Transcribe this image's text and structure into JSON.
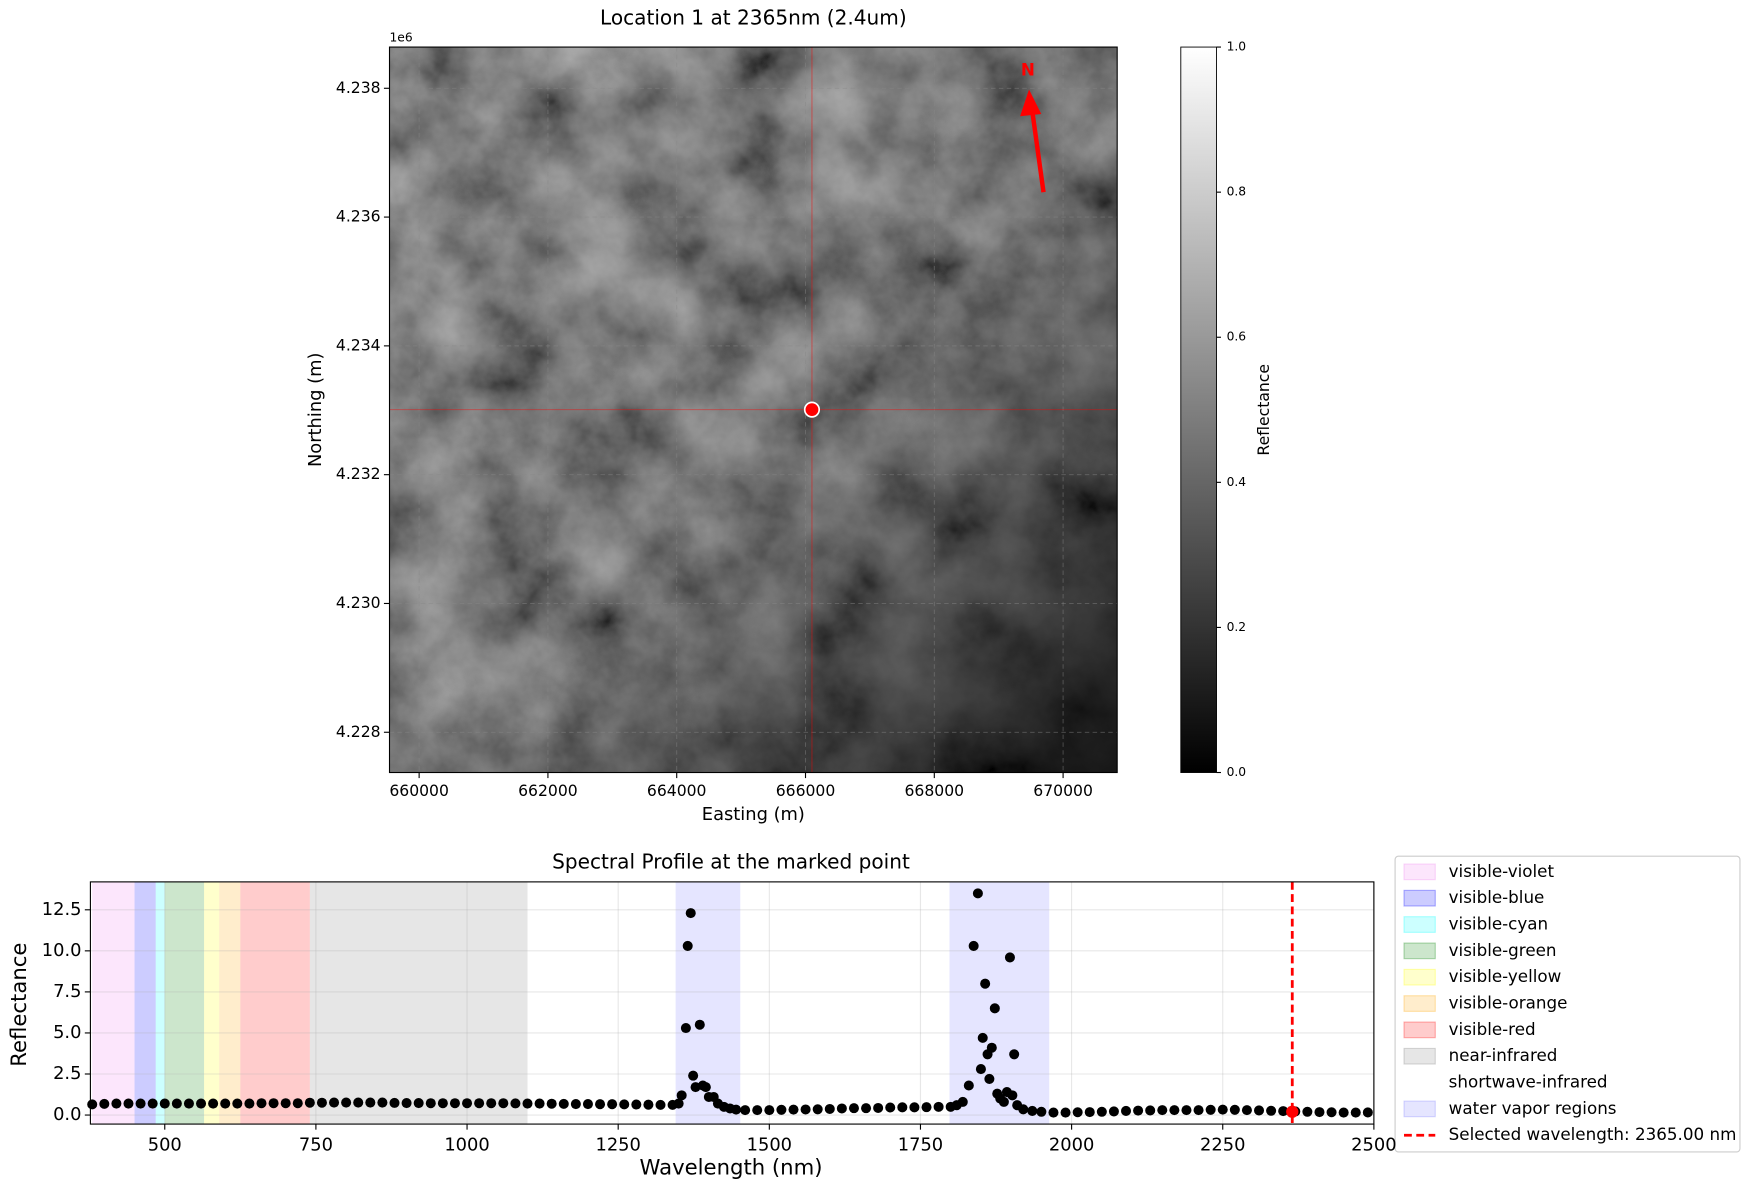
{
  "chart_data": [
    {
      "type": "image",
      "title": "Location 1 at 2365nm (2.4um)",
      "xlabel": "Easting (m)",
      "ylabel": "Northing (m)",
      "offset_label": "1e6",
      "xlim": [
        659540,
        670840
      ],
      "ylim": [
        4227375,
        4238640
      ],
      "xticks": [
        660000,
        662000,
        664000,
        666000,
        668000,
        670000
      ],
      "yticks": [
        {
          "value": 4228000,
          "label": "4.228"
        },
        {
          "value": 4230000,
          "label": "4.230"
        },
        {
          "value": 4232000,
          "label": "4.232"
        },
        {
          "value": 4234000,
          "label": "4.234"
        },
        {
          "value": 4236000,
          "label": "4.236"
        },
        {
          "value": 4238000,
          "label": "4.238"
        }
      ],
      "grid": true,
      "marker": {
        "x": 666100,
        "y": 4233010,
        "color": "red"
      },
      "north_label": "N",
      "colorbar": {
        "label": "Reflectance",
        "lim": [
          0,
          1
        ],
        "ticks": [
          {
            "value": 0,
            "label": "0.0"
          },
          0.2,
          0.4,
          0.6,
          0.8,
          {
            "value": 1,
            "label": "1.0"
          }
        ]
      }
    },
    {
      "type": "scatter",
      "title": "Spectral Profile at the marked point",
      "xlabel": "Wavelength (nm)",
      "ylabel": "Reflectance",
      "xlim": [
        377,
        2500
      ],
      "ylim": [
        -0.55,
        14.2
      ],
      "xticks": [
        500,
        750,
        1000,
        1250,
        1500,
        1750,
        2000,
        2250,
        2500
      ],
      "yticks": [
        {
          "value": 0,
          "label": "0.0"
        },
        2.5,
        {
          "value": 5,
          "label": "5.0"
        },
        7.5,
        {
          "value": 10,
          "label": "10.0"
        },
        12.5
      ],
      "grid": true,
      "color": "#000000",
      "regions": [
        {
          "name": "visible-violet",
          "color": "#ee82ee",
          "alpha": 0.2,
          "ranges": [
            [
              380,
              450
            ]
          ]
        },
        {
          "name": "visible-blue",
          "color": "#0000ff",
          "alpha": 0.2,
          "ranges": [
            [
              450,
              485
            ]
          ]
        },
        {
          "name": "visible-cyan",
          "color": "#00ffff",
          "alpha": 0.2,
          "ranges": [
            [
              485,
              500
            ]
          ]
        },
        {
          "name": "visible-green",
          "color": "#008000",
          "alpha": 0.2,
          "ranges": [
            [
              500,
              565
            ]
          ]
        },
        {
          "name": "visible-yellow",
          "color": "#ffff00",
          "alpha": 0.2,
          "ranges": [
            [
              565,
              590
            ]
          ]
        },
        {
          "name": "visible-orange",
          "color": "#ffa500",
          "alpha": 0.2,
          "ranges": [
            [
              590,
              625
            ]
          ]
        },
        {
          "name": "visible-red",
          "color": "#ff0000",
          "alpha": 0.2,
          "ranges": [
            [
              625,
              740
            ]
          ]
        },
        {
          "name": "near-infrared",
          "color": "#808080",
          "alpha": 0.2,
          "ranges": [
            [
              740,
              1100
            ]
          ]
        },
        {
          "name": "shortwave-infrared",
          "color": "#ffffff",
          "alpha": 0.2,
          "ranges": [
            [
              1100,
              2500
            ]
          ]
        },
        {
          "name": "water vapor regions",
          "color": "#0000ff",
          "alpha": 0.1,
          "ranges": [
            [
              1345,
              1452
            ],
            [
              1798,
              1963
            ]
          ]
        }
      ],
      "selected": {
        "x": 2365,
        "value": 0.2,
        "color": "#ff0000",
        "label": "Selected wavelength: 2365.00 nm"
      },
      "x": [
        380,
        400,
        420,
        440,
        460,
        480,
        500,
        520,
        540,
        560,
        580,
        600,
        620,
        640,
        660,
        680,
        700,
        720,
        740,
        760,
        780,
        800,
        820,
        840,
        860,
        880,
        900,
        920,
        940,
        960,
        980,
        1000,
        1020,
        1040,
        1060,
        1080,
        1100,
        1120,
        1140,
        1160,
        1180,
        1200,
        1220,
        1240,
        1260,
        1280,
        1300,
        1320,
        1340,
        1350,
        1355,
        1362,
        1365,
        1370,
        1374,
        1378,
        1385,
        1390,
        1395,
        1400,
        1408,
        1415,
        1425,
        1435,
        1445,
        1460,
        1480,
        1500,
        1520,
        1540,
        1560,
        1580,
        1600,
        1620,
        1640,
        1660,
        1680,
        1700,
        1720,
        1740,
        1760,
        1780,
        1800,
        1810,
        1820,
        1830,
        1838,
        1845,
        1850,
        1853,
        1857,
        1861,
        1864,
        1868,
        1873,
        1877,
        1882,
        1888,
        1893,
        1898,
        1902,
        1905,
        1910,
        1920,
        1935,
        1950,
        1970,
        1990,
        2010,
        2030,
        2050,
        2070,
        2090,
        2110,
        2130,
        2150,
        2170,
        2190,
        2210,
        2230,
        2250,
        2270,
        2290,
        2310,
        2330,
        2350,
        2370,
        2390,
        2410,
        2430,
        2450,
        2470,
        2490
      ],
      "values": [
        0.65,
        0.68,
        0.7,
        0.7,
        0.7,
        0.7,
        0.7,
        0.7,
        0.7,
        0.7,
        0.7,
        0.7,
        0.7,
        0.7,
        0.72,
        0.72,
        0.72,
        0.72,
        0.75,
        0.75,
        0.76,
        0.76,
        0.76,
        0.76,
        0.76,
        0.74,
        0.73,
        0.73,
        0.72,
        0.72,
        0.72,
        0.72,
        0.72,
        0.72,
        0.72,
        0.71,
        0.7,
        0.7,
        0.69,
        0.68,
        0.67,
        0.67,
        0.66,
        0.66,
        0.65,
        0.64,
        0.63,
        0.62,
        0.62,
        0.7,
        1.2,
        5.3,
        10.3,
        12.3,
        2.4,
        1.7,
        5.5,
        1.8,
        1.7,
        1.1,
        1.1,
        0.7,
        0.5,
        0.4,
        0.33,
        0.3,
        0.3,
        0.3,
        0.32,
        0.33,
        0.34,
        0.35,
        0.37,
        0.4,
        0.42,
        0.42,
        0.43,
        0.46,
        0.47,
        0.47,
        0.48,
        0.5,
        0.5,
        0.6,
        0.8,
        1.8,
        10.3,
        13.5,
        2.8,
        4.7,
        8.0,
        3.7,
        2.2,
        4.1,
        6.5,
        1.3,
        1.0,
        0.8,
        1.4,
        9.6,
        1.2,
        3.7,
        0.6,
        0.35,
        0.25,
        0.2,
        0.15,
        0.15,
        0.17,
        0.18,
        0.2,
        0.22,
        0.25,
        0.27,
        0.28,
        0.3,
        0.3,
        0.3,
        0.3,
        0.32,
        0.33,
        0.32,
        0.3,
        0.28,
        0.26,
        0.24,
        0.22,
        0.2,
        0.18,
        0.17,
        0.15,
        0.15,
        0.16
      ]
    }
  ]
}
